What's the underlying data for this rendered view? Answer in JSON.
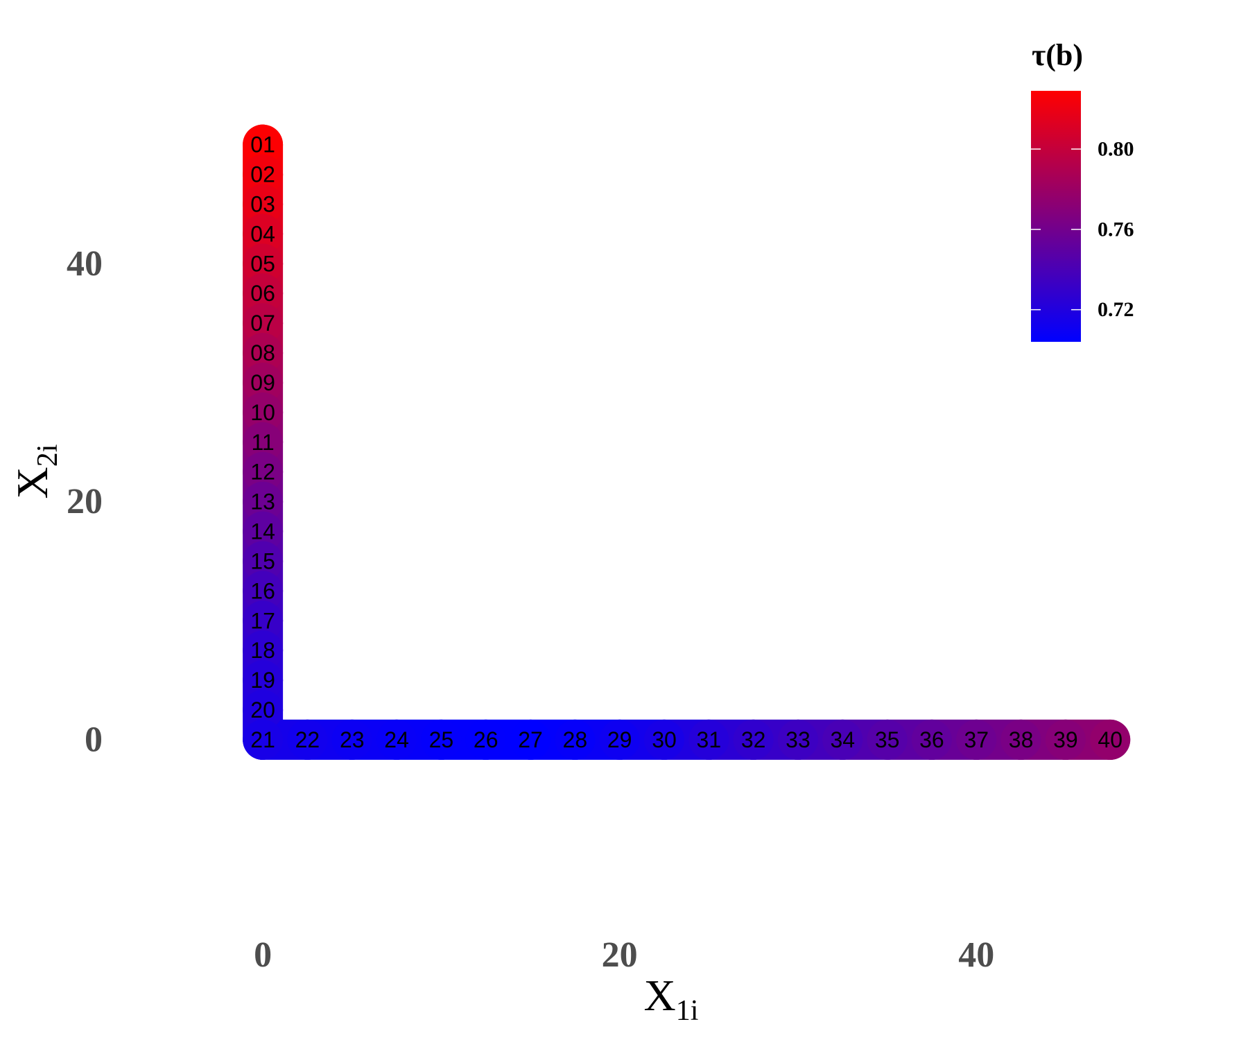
{
  "chart_data": {
    "type": "scatter",
    "title": "",
    "xlabel": {
      "main": "X",
      "sub": "1i"
    },
    "ylabel": {
      "main": "X",
      "sub": "2i"
    },
    "xlim": [
      -7,
      52
    ],
    "ylim": [
      -15.5,
      60
    ],
    "x_ticks": [
      {
        "value": 0,
        "label": "0"
      },
      {
        "value": 20,
        "label": "20"
      },
      {
        "value": 40,
        "label": "40"
      }
    ],
    "y_ticks": [
      {
        "value": 0,
        "label": "0"
      },
      {
        "value": 20,
        "label": "20"
      },
      {
        "value": 40,
        "label": "40"
      }
    ],
    "grid": false,
    "colorbar": {
      "title": "τ(b)",
      "min": 0.704,
      "max": 0.829,
      "ticks": [
        {
          "value": 0.72,
          "label": "0.72"
        },
        {
          "value": 0.76,
          "label": "0.76"
        },
        {
          "value": 0.8,
          "label": "0.80"
        }
      ],
      "low_color": "#0000ff",
      "high_color": "#ff0000",
      "placement": "top-right"
    },
    "points": [
      {
        "label": "01",
        "x": 0,
        "y": 50,
        "value": 0.828
      },
      {
        "label": "02",
        "x": 0,
        "y": 47.5,
        "value": 0.823
      },
      {
        "label": "03",
        "x": 0,
        "y": 45,
        "value": 0.818
      },
      {
        "label": "04",
        "x": 0,
        "y": 42.5,
        "value": 0.812
      },
      {
        "label": "05",
        "x": 0,
        "y": 40,
        "value": 0.806
      },
      {
        "label": "06",
        "x": 0,
        "y": 37.5,
        "value": 0.8
      },
      {
        "label": "07",
        "x": 0,
        "y": 35,
        "value": 0.795
      },
      {
        "label": "08",
        "x": 0,
        "y": 32.5,
        "value": 0.789
      },
      {
        "label": "09",
        "x": 0,
        "y": 30,
        "value": 0.783
      },
      {
        "label": "10",
        "x": 0,
        "y": 27.5,
        "value": 0.777
      },
      {
        "label": "11",
        "x": 0,
        "y": 25,
        "value": 0.77
      },
      {
        "label": "12",
        "x": 0,
        "y": 22.5,
        "value": 0.764
      },
      {
        "label": "13",
        "x": 0,
        "y": 20,
        "value": 0.757
      },
      {
        "label": "14",
        "x": 0,
        "y": 17.5,
        "value": 0.75
      },
      {
        "label": "15",
        "x": 0,
        "y": 15,
        "value": 0.743
      },
      {
        "label": "16",
        "x": 0,
        "y": 12.5,
        "value": 0.737
      },
      {
        "label": "17",
        "x": 0,
        "y": 10,
        "value": 0.731
      },
      {
        "label": "18",
        "x": 0,
        "y": 7.5,
        "value": 0.726
      },
      {
        "label": "19",
        "x": 0,
        "y": 5,
        "value": 0.722
      },
      {
        "label": "20",
        "x": 0,
        "y": 2.5,
        "value": 0.719
      },
      {
        "label": "21",
        "x": 0,
        "y": 0,
        "value": 0.716
      },
      {
        "label": "22",
        "x": 2.5,
        "y": 0,
        "value": 0.713
      },
      {
        "label": "23",
        "x": 5,
        "y": 0,
        "value": 0.71
      },
      {
        "label": "24",
        "x": 7.5,
        "y": 0,
        "value": 0.708
      },
      {
        "label": "25",
        "x": 10,
        "y": 0,
        "value": 0.706
      },
      {
        "label": "26",
        "x": 12.5,
        "y": 0,
        "value": 0.705
      },
      {
        "label": "27",
        "x": 15,
        "y": 0,
        "value": 0.704
      },
      {
        "label": "28",
        "x": 17.5,
        "y": 0,
        "value": 0.707
      },
      {
        "label": "29",
        "x": 20,
        "y": 0,
        "value": 0.711
      },
      {
        "label": "30",
        "x": 22.5,
        "y": 0,
        "value": 0.716
      },
      {
        "label": "31",
        "x": 25,
        "y": 0,
        "value": 0.722
      },
      {
        "label": "32",
        "x": 27.5,
        "y": 0,
        "value": 0.728
      },
      {
        "label": "33",
        "x": 30,
        "y": 0,
        "value": 0.734
      },
      {
        "label": "34",
        "x": 32.5,
        "y": 0,
        "value": 0.74
      },
      {
        "label": "35",
        "x": 35,
        "y": 0,
        "value": 0.746
      },
      {
        "label": "36",
        "x": 37.5,
        "y": 0,
        "value": 0.752
      },
      {
        "label": "37",
        "x": 40,
        "y": 0,
        "value": 0.758
      },
      {
        "label": "38",
        "x": 42.5,
        "y": 0,
        "value": 0.764
      },
      {
        "label": "39",
        "x": 45,
        "y": 0,
        "value": 0.77
      },
      {
        "label": "40",
        "x": 47.5,
        "y": 0,
        "value": 0.776
      }
    ]
  }
}
